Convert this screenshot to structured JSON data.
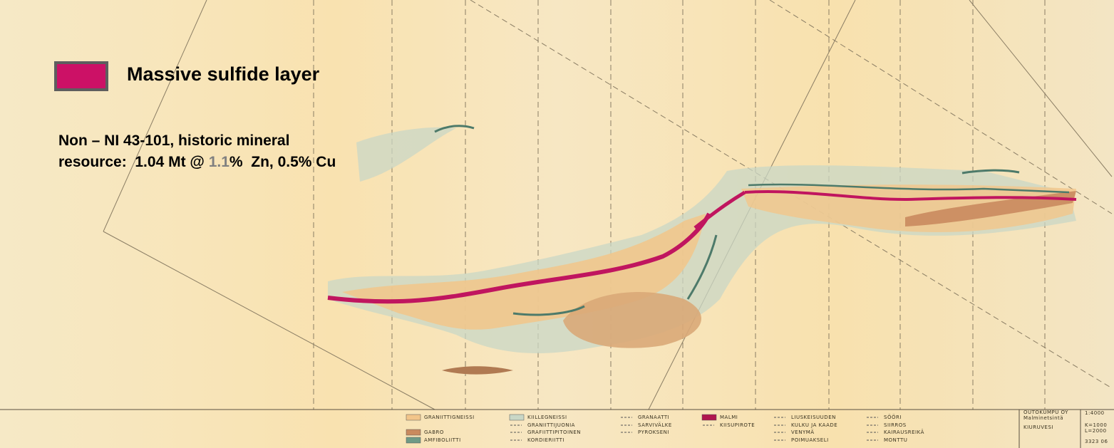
{
  "legend": {
    "label": "Massive sulfide layer"
  },
  "resource": {
    "line1": "Non – NI 43-101, historic mineral",
    "line2_prefix": "resource:  1.04 Mt @ ",
    "grade": "1.1",
    "line2_suffix": "%  Zn, 0.5% Cu"
  },
  "map_legend": {
    "items": [
      "GRANIITTIGNEISSI",
      "GABRO",
      "AMFIBOLIITTI",
      "KIILLEGNEISSI",
      "GRANIITTIJUONIA",
      "GRAFIITTIPITOINEN",
      "KORDIERIITTI",
      "GRANAATTI",
      "SARVIVÄLKE",
      "PYROKSENI",
      "MALMI",
      "KIISUPIROTE",
      "LIUSKEISUUDEN",
      "KULKU JA KAADE",
      "VENYMÄ",
      "POIMUAKSELI",
      "SÖÖRI",
      "SIIRROS",
      "KAIRAUSREIKÄ",
      "MONTTU"
    ]
  },
  "title_block": {
    "company": "OUTOKUMPU OY",
    "dept": "Malminetsintä",
    "place": "KIURUVESI",
    "scale": "1:4000",
    "k": "K=1000",
    "l": "L=2000",
    "number": "3323 06"
  }
}
